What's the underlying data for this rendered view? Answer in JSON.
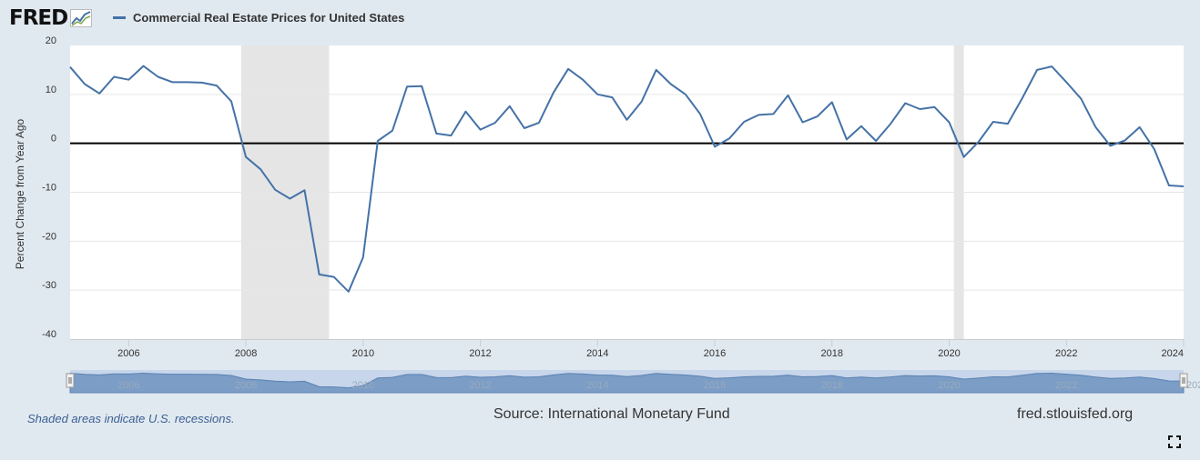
{
  "header": {
    "logo_text": "FRED",
    "legend_label": "Commercial Real Estate Prices for United States",
    "series_color": "#4572a7"
  },
  "footer": {
    "note": "Shaded areas indicate U.S. recessions.",
    "source": "Source: International Monetary Fund",
    "site": "fred.stlouisfed.org"
  },
  "chart_data": {
    "type": "line",
    "title": "Commercial Real Estate Prices for United States",
    "ylabel": "Percent Change from Year Ago",
    "xlabel": "",
    "xlim": [
      2005.0,
      2024.0
    ],
    "ylim": [
      -40,
      20
    ],
    "yticks": [
      -40,
      -30,
      -20,
      -10,
      0,
      10,
      20
    ],
    "xticks": [
      2006,
      2008,
      2010,
      2012,
      2014,
      2016,
      2018,
      2020,
      2022,
      2024
    ],
    "grid": true,
    "zero_line": true,
    "recessions": [
      [
        2007.92,
        2009.42
      ],
      [
        2020.08,
        2020.25
      ]
    ],
    "series": [
      {
        "name": "Commercial Real Estate Prices for United States",
        "x": [
          2005.0,
          2005.25,
          2005.5,
          2005.75,
          2006.0,
          2006.25,
          2006.5,
          2006.75,
          2007.0,
          2007.25,
          2007.5,
          2007.75,
          2008.0,
          2008.25,
          2008.5,
          2008.75,
          2009.0,
          2009.25,
          2009.5,
          2009.75,
          2010.0,
          2010.25,
          2010.5,
          2010.75,
          2011.0,
          2011.25,
          2011.5,
          2011.75,
          2012.0,
          2012.25,
          2012.5,
          2012.75,
          2013.0,
          2013.25,
          2013.5,
          2013.75,
          2014.0,
          2014.25,
          2014.5,
          2014.75,
          2015.0,
          2015.25,
          2015.5,
          2015.75,
          2016.0,
          2016.25,
          2016.5,
          2016.75,
          2017.0,
          2017.25,
          2017.5,
          2017.75,
          2018.0,
          2018.25,
          2018.5,
          2018.75,
          2019.0,
          2019.25,
          2019.5,
          2019.75,
          2020.0,
          2020.25,
          2020.5,
          2020.75,
          2021.0,
          2021.25,
          2021.5,
          2021.75,
          2022.0,
          2022.25,
          2022.5,
          2022.75,
          2023.0,
          2023.25,
          2023.5,
          2023.75,
          2024.0
        ],
        "values": [
          15.6,
          12.1,
          10.2,
          13.6,
          13.0,
          15.8,
          13.6,
          12.5,
          12.5,
          12.4,
          11.8,
          8.6,
          -2.8,
          -5.3,
          -9.5,
          -11.3,
          -9.6,
          -26.8,
          -27.3,
          -30.3,
          -23.3,
          0.5,
          2.6,
          11.6,
          11.7,
          2.0,
          1.6,
          6.5,
          2.8,
          4.2,
          7.6,
          3.1,
          4.2,
          10.4,
          15.2,
          13.0,
          10.0,
          9.4,
          4.8,
          8.5,
          15.0,
          12.1,
          10.0,
          6.0,
          -0.7,
          1.0,
          4.4,
          5.8,
          6.0,
          9.8,
          4.3,
          5.5,
          8.4,
          0.8,
          3.5,
          0.5,
          4.0,
          8.2,
          7.0,
          7.4,
          4.3,
          -2.8,
          0.3,
          4.4,
          4.0,
          9.3,
          15.0,
          15.7,
          12.5,
          9.1,
          3.3,
          -0.5,
          0.6,
          3.3,
          -1.2,
          -8.6,
          -8.8
        ]
      }
    ],
    "navigator": {
      "labels": [
        "2006",
        "2008",
        "2010",
        "2012",
        "2014",
        "2016",
        "2018",
        "2020",
        "2022",
        "202"
      ]
    }
  }
}
